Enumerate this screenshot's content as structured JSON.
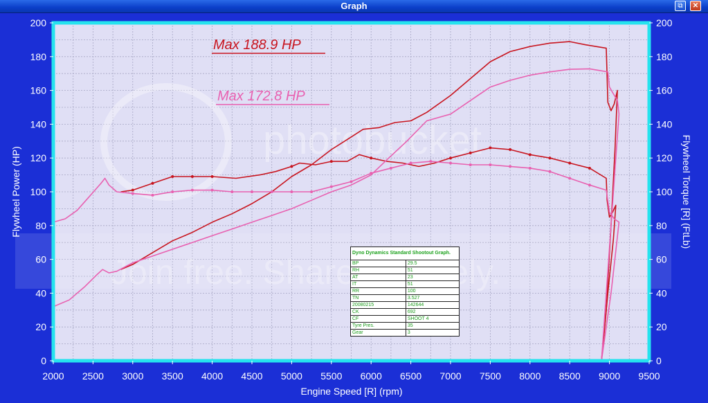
{
  "window": {
    "title": "Graph"
  },
  "controls": {
    "restore_icon": "restore-icon",
    "close_icon": "close-icon",
    "restore_glyph": "⧉",
    "close_glyph": "✕"
  },
  "colors": {
    "background": "#1b2fd6",
    "plot_bg": "#e0dff5",
    "plot_border": "#25e3ee",
    "run1": "#c8141e",
    "run2": "#e860b0"
  },
  "annotations": {
    "run1_max": "Max 188.9 HP",
    "run2_max": "Max 172.8 HP"
  },
  "watermark": {
    "logo": "photobucket",
    "tagline": "Join free. Share privately."
  },
  "dyno_table": {
    "header": "Dyno Dynamics Standard Shootout Graph.",
    "rows": [
      [
        "BP",
        "29.5"
      ],
      [
        "RH",
        "51"
      ],
      [
        "AT",
        "23"
      ],
      [
        "IT",
        "51"
      ],
      [
        "RR",
        "100"
      ],
      [
        "TN",
        "3.527"
      ],
      [
        "20080215",
        "142644"
      ],
      [
        "CK",
        "692"
      ],
      [
        "CF",
        "SHOOT 4"
      ],
      [
        "Tyre Pres.",
        "35"
      ],
      [
        "Gear",
        "3"
      ]
    ]
  },
  "chart_data": {
    "type": "line",
    "title": "",
    "xlabel": "Engine Speed [R] (rpm)",
    "ylabel": "Flywheel Power (HP)",
    "y2label": "Flywheel Torque [R] (FtLb)",
    "xlim": [
      2000,
      9500
    ],
    "ylim": [
      0,
      200
    ],
    "y2lim": [
      0,
      200
    ],
    "xticks": [
      "2000",
      "2500",
      "3000",
      "3500",
      "4000",
      "4500",
      "5000",
      "5500",
      "6000",
      "6500",
      "7000",
      "7500",
      "8000",
      "8500",
      "9000",
      "9500"
    ],
    "yticks": [
      "0",
      "20",
      "40",
      "60",
      "80",
      "100",
      "120",
      "140",
      "160",
      "180",
      "200"
    ],
    "y2ticks": [
      "0",
      "20",
      "40",
      "60",
      "80",
      "100",
      "120",
      "140",
      "160",
      "180",
      "200"
    ],
    "grid": true,
    "series": [
      {
        "name": "Max 188.9 HP",
        "kind": "power",
        "color": "#c8141e",
        "points": [
          [
            2850,
            54
          ],
          [
            3000,
            57
          ],
          [
            3250,
            64
          ],
          [
            3500,
            71
          ],
          [
            3750,
            76
          ],
          [
            4000,
            82
          ],
          [
            4250,
            87
          ],
          [
            4500,
            93
          ],
          [
            4750,
            100
          ],
          [
            5000,
            109
          ],
          [
            5250,
            116
          ],
          [
            5500,
            125
          ],
          [
            5700,
            131
          ],
          [
            5900,
            137
          ],
          [
            6100,
            138
          ],
          [
            6300,
            141
          ],
          [
            6500,
            142
          ],
          [
            6700,
            147
          ],
          [
            7000,
            157
          ],
          [
            7250,
            167
          ],
          [
            7500,
            177
          ],
          [
            7750,
            183
          ],
          [
            8000,
            186
          ],
          [
            8250,
            188
          ],
          [
            8500,
            188.9
          ],
          [
            8700,
            187
          ],
          [
            8960,
            185
          ],
          [
            8980,
            153
          ],
          [
            9020,
            148
          ],
          [
            9060,
            152
          ],
          [
            9100,
            160
          ],
          [
            9070,
            125
          ],
          [
            9020,
            80
          ],
          [
            8960,
            30
          ],
          [
            8900,
            0
          ]
        ]
      },
      {
        "name": "Max 188.9 HP",
        "kind": "torque",
        "color": "#c8141e",
        "points": [
          [
            2850,
            100
          ],
          [
            3000,
            101
          ],
          [
            3250,
            105
          ],
          [
            3500,
            109
          ],
          [
            3750,
            109
          ],
          [
            4000,
            109
          ],
          [
            4300,
            108
          ],
          [
            4600,
            110
          ],
          [
            4800,
            112
          ],
          [
            5000,
            115
          ],
          [
            5100,
            117
          ],
          [
            5300,
            116
          ],
          [
            5500,
            118
          ],
          [
            5700,
            118
          ],
          [
            5850,
            122
          ],
          [
            6000,
            120
          ],
          [
            6200,
            118
          ],
          [
            6400,
            117
          ],
          [
            6600,
            115
          ],
          [
            6800,
            117
          ],
          [
            7000,
            120
          ],
          [
            7250,
            123
          ],
          [
            7500,
            126
          ],
          [
            7750,
            125
          ],
          [
            8000,
            122
          ],
          [
            8250,
            120
          ],
          [
            8500,
            117
          ],
          [
            8750,
            114
          ],
          [
            8960,
            108
          ],
          [
            8970,
            95
          ],
          [
            9000,
            85
          ],
          [
            9040,
            88
          ],
          [
            9080,
            92
          ],
          [
            9050,
            72
          ],
          [
            8980,
            40
          ],
          [
            8900,
            0
          ]
        ]
      },
      {
        "name": "Max 172.8 HP",
        "kind": "power",
        "color": "#e860b0",
        "points": [
          [
            2000,
            32
          ],
          [
            2200,
            36
          ],
          [
            2400,
            44
          ],
          [
            2550,
            51
          ],
          [
            2620,
            54
          ],
          [
            2700,
            52
          ],
          [
            2800,
            53
          ],
          [
            3000,
            58
          ],
          [
            3250,
            62
          ],
          [
            3500,
            66
          ],
          [
            3750,
            70
          ],
          [
            4000,
            74
          ],
          [
            4250,
            78
          ],
          [
            4500,
            82
          ],
          [
            4750,
            86
          ],
          [
            5000,
            90
          ],
          [
            5250,
            95
          ],
          [
            5500,
            100
          ],
          [
            5750,
            104
          ],
          [
            6000,
            110
          ],
          [
            6200,
            119
          ],
          [
            6450,
            130
          ],
          [
            6700,
            142
          ],
          [
            7000,
            146
          ],
          [
            7250,
            154
          ],
          [
            7500,
            162
          ],
          [
            7750,
            166
          ],
          [
            8000,
            169
          ],
          [
            8250,
            171
          ],
          [
            8500,
            172.5
          ],
          [
            8750,
            172.8
          ],
          [
            8980,
            171
          ],
          [
            9000,
            162
          ],
          [
            9050,
            158
          ],
          [
            9100,
            154
          ],
          [
            9120,
            146
          ],
          [
            9080,
            120
          ],
          [
            9020,
            80
          ],
          [
            8960,
            40
          ],
          [
            8900,
            0
          ]
        ]
      },
      {
        "name": "Max 172.8 HP",
        "kind": "torque",
        "color": "#e860b0",
        "points": [
          [
            2000,
            82
          ],
          [
            2150,
            84
          ],
          [
            2300,
            89
          ],
          [
            2450,
            97
          ],
          [
            2600,
            105
          ],
          [
            2650,
            108
          ],
          [
            2700,
            104
          ],
          [
            2800,
            100
          ],
          [
            3000,
            99
          ],
          [
            3250,
            98
          ],
          [
            3500,
            100
          ],
          [
            3750,
            101
          ],
          [
            4000,
            101
          ],
          [
            4250,
            100
          ],
          [
            4500,
            100
          ],
          [
            4750,
            100
          ],
          [
            5000,
            100
          ],
          [
            5250,
            100
          ],
          [
            5500,
            103
          ],
          [
            5750,
            106
          ],
          [
            6000,
            111
          ],
          [
            6250,
            114
          ],
          [
            6500,
            117
          ],
          [
            6750,
            118
          ],
          [
            7000,
            117
          ],
          [
            7250,
            116
          ],
          [
            7500,
            116
          ],
          [
            7750,
            115
          ],
          [
            8000,
            114
          ],
          [
            8250,
            112
          ],
          [
            8500,
            108
          ],
          [
            8750,
            104
          ],
          [
            8960,
            101
          ],
          [
            9000,
            88
          ],
          [
            9060,
            84
          ],
          [
            9120,
            82
          ],
          [
            9080,
            65
          ],
          [
            9020,
            40
          ],
          [
            8960,
            20
          ],
          [
            8900,
            0
          ]
        ]
      }
    ]
  }
}
